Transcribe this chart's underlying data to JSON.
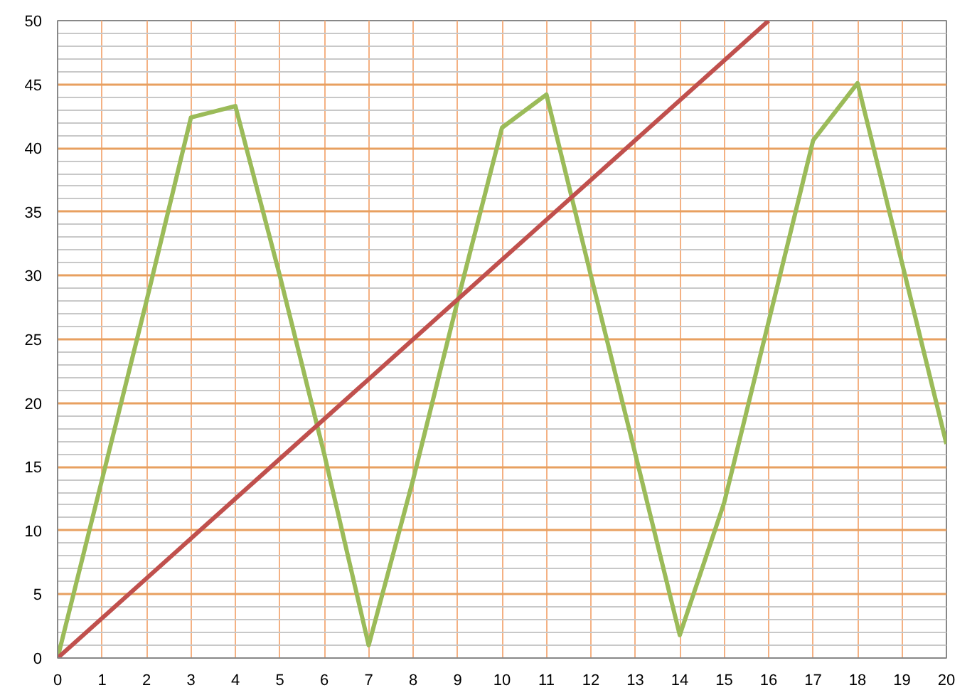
{
  "chart_data": {
    "type": "line",
    "xlim": [
      0,
      20
    ],
    "ylim": [
      0,
      50
    ],
    "xticks": [
      0,
      1,
      2,
      3,
      4,
      5,
      6,
      7,
      8,
      9,
      10,
      11,
      12,
      13,
      14,
      15,
      16,
      17,
      18,
      19,
      20
    ],
    "yticks": [
      0,
      5,
      10,
      15,
      20,
      25,
      30,
      35,
      40,
      45,
      50
    ],
    "grid": true,
    "line_style": "solid",
    "series": [
      {
        "color": "#9bbb59",
        "x": [
          0,
          1,
          2,
          3,
          4,
          5,
          6,
          7,
          8,
          9,
          10,
          11,
          12,
          13,
          14,
          15,
          16,
          17,
          18,
          19,
          20
        ],
        "values": [
          0,
          14,
          28,
          42.4,
          43.3,
          30,
          16,
          1,
          14,
          28,
          41.6,
          44.2,
          30,
          16,
          1.8,
          12.2,
          26.4,
          40.6,
          45.1,
          31,
          16.8
        ]
      },
      {
        "color": "#c0504d",
        "x": [
          0,
          16
        ],
        "values": [
          0,
          50
        ]
      }
    ]
  }
}
